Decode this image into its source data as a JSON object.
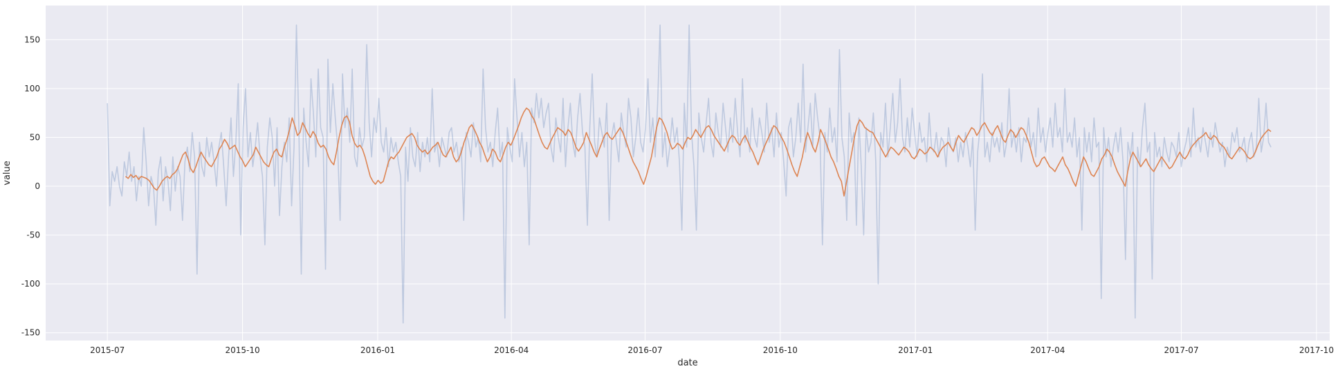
{
  "chart_data": {
    "type": "line",
    "xlabel": "date",
    "ylabel": "value",
    "x_start": "2015-07-01",
    "x_end": "2017-08-31",
    "xlim": [
      "2015-05-20",
      "2017-10-10"
    ],
    "ylim": [
      -158,
      185
    ],
    "x_tick_labels": [
      "2015-07",
      "2015-10",
      "2016-01",
      "2016-04",
      "2016-07",
      "2016-10",
      "2017-01",
      "2017-04",
      "2017-07",
      "2017-10"
    ],
    "y_ticks": [
      -150,
      -100,
      -50,
      0,
      50,
      100,
      150
    ],
    "grid": true,
    "legend": "none",
    "background": "#eaeaf2",
    "series": [
      {
        "role": "raw daily",
        "color": "#4c72b0",
        "opacity": 0.28,
        "values": [
          85,
          -20,
          15,
          5,
          20,
          0,
          -10,
          25,
          10,
          35,
          5,
          20,
          -15,
          10,
          0,
          60,
          25,
          -20,
          10,
          0,
          -40,
          15,
          30,
          -15,
          20,
          5,
          -25,
          30,
          -5,
          20,
          10,
          -35,
          25,
          40,
          15,
          55,
          30,
          -90,
          45,
          20,
          10,
          50,
          30,
          45,
          25,
          0,
          40,
          55,
          20,
          -20,
          30,
          70,
          10,
          45,
          105,
          -50,
          60,
          100,
          30,
          55,
          20,
          40,
          65,
          30,
          10,
          -60,
          40,
          70,
          50,
          0,
          60,
          -30,
          20,
          45,
          25,
          70,
          -20,
          40,
          165,
          60,
          -90,
          80,
          45,
          20,
          110,
          75,
          30,
          120,
          60,
          50,
          -85,
          130,
          55,
          105,
          70,
          40,
          -35,
          115,
          60,
          80,
          45,
          120,
          30,
          20,
          60,
          40,
          50,
          145,
          65,
          30,
          70,
          55,
          90,
          45,
          35,
          60,
          20,
          50,
          35,
          45,
          25,
          10,
          -140,
          40,
          5,
          60,
          30,
          20,
          55,
          15,
          45,
          30,
          50,
          25,
          100,
          35,
          45,
          20,
          50,
          40,
          30,
          55,
          60,
          35,
          45,
          25,
          40,
          -35,
          55,
          45,
          30,
          65,
          40,
          50,
          25,
          120,
          60,
          35,
          45,
          20,
          55,
          80,
          30,
          45,
          -135,
          60,
          40,
          25,
          110,
          70,
          30,
          55,
          20,
          45,
          -60,
          80,
          65,
          95,
          70,
          90,
          60,
          75,
          85,
          40,
          25,
          70,
          50,
          35,
          90,
          20,
          60,
          85,
          45,
          30,
          70,
          95,
          55,
          40,
          -40,
          60,
          115,
          45,
          30,
          70,
          55,
          40,
          85,
          -35,
          50,
          65,
          45,
          25,
          75,
          55,
          40,
          90,
          70,
          30,
          50,
          80,
          45,
          35,
          60,
          110,
          45,
          70,
          30,
          85,
          165,
          30,
          55,
          20,
          40,
          70,
          45,
          60,
          25,
          -45,
          85,
          40,
          165,
          55,
          20,
          -45,
          75,
          50,
          35,
          65,
          90,
          45,
          30,
          75,
          55,
          40,
          85,
          60,
          35,
          70,
          45,
          90,
          55,
          30,
          110,
          45,
          60,
          35,
          80,
          50,
          40,
          70,
          55,
          35,
          85,
          45,
          60,
          30,
          75,
          40,
          55,
          25,
          -10,
          60,
          70,
          30,
          50,
          85,
          45,
          125,
          35,
          60,
          85,
          40,
          95,
          70,
          50,
          -60,
          55,
          35,
          80,
          45,
          60,
          25,
          140,
          50,
          30,
          -35,
          75,
          45,
          55,
          -40,
          70,
          20,
          -50,
          60,
          35,
          45,
          75,
          25,
          -100,
          55,
          40,
          85,
          30,
          60,
          95,
          45,
          65,
          110,
          50,
          35,
          70,
          40,
          80,
          55,
          30,
          65,
          45,
          50,
          25,
          75,
          40,
          35,
          55,
          30,
          50,
          45,
          20,
          60,
          40,
          35,
          50,
          25,
          45,
          30,
          55,
          40,
          20,
          50,
          -45,
          35,
          60,
          115,
          30,
          45,
          25,
          55,
          40,
          50,
          35,
          65,
          30,
          45,
          100,
          40,
          55,
          35,
          60,
          25,
          50,
          45,
          70,
          40,
          55,
          30,
          80,
          45,
          60,
          35,
          55,
          70,
          40,
          85,
          50,
          60,
          35,
          100,
          45,
          55,
          40,
          70,
          30,
          50,
          -45,
          60,
          35,
          55,
          25,
          70,
          40,
          45,
          -115,
          60,
          30,
          50,
          20,
          40,
          55,
          35,
          60,
          25,
          -75,
          45,
          30,
          55,
          -135,
          40,
          20,
          60,
          85,
          35,
          45,
          -95,
          55,
          30,
          40,
          20,
          50,
          35,
          25,
          45,
          40,
          30,
          55,
          20,
          35,
          45,
          60,
          30,
          80,
          40,
          50,
          35,
          60,
          45,
          30,
          55,
          40,
          65,
          50,
          35,
          45,
          20,
          40,
          30,
          55,
          45,
          60,
          35,
          40,
          50,
          25,
          45,
          55,
          30,
          40,
          90,
          35,
          50,
          85,
          45,
          40
        ]
      },
      {
        "role": "rolling mean",
        "color": "#dd8452",
        "opacity": 1,
        "start_offset": 7,
        "values": [
          10,
          8,
          12,
          9,
          11,
          7,
          10,
          9,
          8,
          6,
          2,
          -2,
          -4,
          0,
          5,
          8,
          10,
          8,
          12,
          14,
          18,
          25,
          32,
          35,
          28,
          18,
          14,
          20,
          28,
          35,
          30,
          26,
          22,
          20,
          25,
          30,
          38,
          42,
          48,
          44,
          38,
          40,
          42,
          36,
          30,
          26,
          20,
          24,
          28,
          32,
          40,
          35,
          30,
          25,
          22,
          20,
          28,
          35,
          38,
          32,
          30,
          40,
          48,
          58,
          70,
          62,
          52,
          55,
          65,
          60,
          54,
          50,
          56,
          52,
          44,
          40,
          42,
          38,
          30,
          25,
          22,
          35,
          50,
          62,
          70,
          72,
          66,
          52,
          44,
          40,
          42,
          38,
          30,
          20,
          10,
          5,
          2,
          6,
          3,
          5,
          15,
          25,
          30,
          28,
          32,
          35,
          40,
          45,
          50,
          52,
          54,
          50,
          42,
          38,
          35,
          37,
          33,
          36,
          40,
          42,
          45,
          38,
          32,
          30,
          35,
          40,
          30,
          25,
          28,
          35,
          45,
          52,
          60,
          63,
          58,
          52,
          45,
          40,
          32,
          25,
          30,
          38,
          35,
          28,
          25,
          32,
          40,
          45,
          42,
          48,
          55,
          62,
          70,
          76,
          80,
          78,
          72,
          68,
          60,
          52,
          45,
          40,
          38,
          44,
          50,
          55,
          60,
          58,
          56,
          52,
          58,
          55,
          48,
          40,
          36,
          40,
          45,
          55,
          48,
          42,
          35,
          30,
          38,
          45,
          52,
          55,
          50,
          48,
          52,
          56,
          60,
          55,
          48,
          40,
          32,
          25,
          20,
          15,
          8,
          2,
          10,
          20,
          30,
          45,
          60,
          70,
          68,
          62,
          55,
          45,
          38,
          40,
          44,
          42,
          38,
          45,
          50,
          48,
          52,
          58,
          54,
          50,
          55,
          60,
          62,
          58,
          52,
          48,
          44,
          40,
          36,
          42,
          48,
          52,
          50,
          45,
          42,
          48,
          52,
          46,
          40,
          35,
          28,
          22,
          30,
          38,
          44,
          50,
          56,
          62,
          60,
          55,
          50,
          45,
          38,
          30,
          22,
          15,
          10,
          20,
          30,
          45,
          55,
          48,
          40,
          35,
          45,
          58,
          52,
          45,
          38,
          30,
          25,
          18,
          10,
          5,
          -10,
          5,
          20,
          35,
          50,
          62,
          68,
          65,
          60,
          58,
          56,
          55,
          50,
          45,
          40,
          35,
          30,
          35,
          40,
          38,
          35,
          32,
          36,
          40,
          38,
          35,
          30,
          28,
          32,
          38,
          36,
          33,
          35,
          40,
          38,
          35,
          30,
          36,
          40,
          42,
          45,
          40,
          36,
          45,
          52,
          48,
          45,
          50,
          55,
          60,
          58,
          52,
          56,
          62,
          65,
          60,
          55,
          52,
          58,
          62,
          55,
          48,
          45,
          52,
          58,
          55,
          50,
          55,
          60,
          58,
          52,
          45,
          35,
          25,
          20,
          22,
          28,
          30,
          25,
          20,
          18,
          15,
          20,
          25,
          30,
          22,
          18,
          12,
          5,
          0,
          10,
          20,
          30,
          25,
          18,
          12,
          10,
          15,
          20,
          28,
          32,
          38,
          35,
          30,
          22,
          15,
          10,
          5,
          0,
          15,
          28,
          35,
          30,
          25,
          20,
          24,
          28,
          22,
          18,
          15,
          20,
          25,
          30,
          26,
          22,
          18,
          20,
          25,
          30,
          35,
          30,
          28,
          32,
          38,
          42,
          45,
          48,
          50,
          52,
          55,
          50,
          48,
          52,
          50,
          45,
          42,
          40,
          35,
          30,
          28,
          32,
          36,
          40,
          38,
          35,
          30,
          28,
          30,
          35,
          42,
          48,
          52,
          55,
          58,
          56
        ]
      }
    ]
  }
}
